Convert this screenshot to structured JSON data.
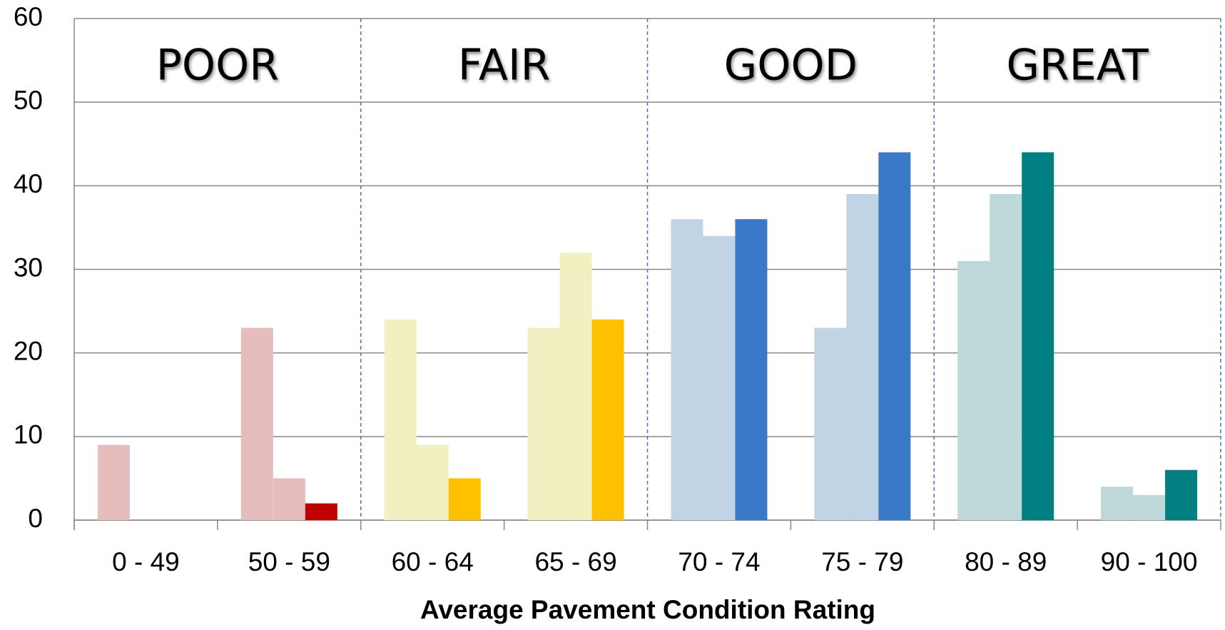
{
  "chart_data": {
    "type": "bar",
    "x_label": "Average Pavement Condition Rating",
    "categories": [
      "0 - 49",
      "50 - 59",
      "60 - 64",
      "65 - 69",
      "70 - 74",
      "75 - 79",
      "80 - 89",
      "90 - 100"
    ],
    "series": [
      {
        "values": [
          9,
          23,
          24,
          23,
          36,
          23,
          31,
          4
        ]
      },
      {
        "values": [
          0,
          5,
          9,
          32,
          34,
          39,
          39,
          3
        ]
      },
      {
        "values": [
          0,
          2,
          5,
          24,
          36,
          44,
          44,
          6
        ]
      }
    ],
    "groups": [
      {
        "label": "POOR",
        "color": "#ff0000",
        "colors": [
          "#e6bcbc",
          "#e6bcbc",
          "#c00000"
        ]
      },
      {
        "label": "FAIR",
        "color": "#ffc000",
        "colors": [
          "#f2f0c0",
          "#f2f0c0",
          "#ffc000"
        ]
      },
      {
        "label": "GOOD",
        "color": "#3b7dd8",
        "colors": [
          "#c0d4e6",
          "#c0d4e6",
          "#3a78c8"
        ]
      },
      {
        "label": "GREAT",
        "color": "#00827f",
        "colors": [
          "#bcd8d8",
          "#bcd8d8",
          "#008080"
        ]
      }
    ],
    "ylim": [
      0,
      60
    ],
    "yticks": [
      0,
      10,
      20,
      30,
      40,
      50,
      60
    ],
    "grid": true
  }
}
